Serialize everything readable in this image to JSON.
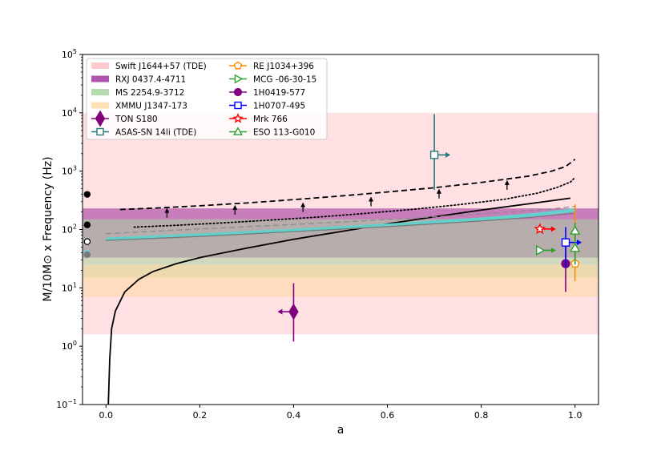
{
  "chart_data": {
    "type": "scatter",
    "xlabel": "a",
    "ylabel": "M/10M⊙ x Frequency (Hz)",
    "xlim": [
      -0.05,
      1.05
    ],
    "ylim_log10": [
      -1,
      5
    ],
    "x_ticks": [
      {
        "value": 0.0,
        "label": "0.0"
      },
      {
        "value": 0.2,
        "label": "0.2"
      },
      {
        "value": 0.4,
        "label": "0.4"
      },
      {
        "value": 0.6,
        "label": "0.6"
      },
      {
        "value": 0.8,
        "label": "0.8"
      },
      {
        "value": 1.0,
        "label": "1.0"
      }
    ],
    "y_ticks": [
      {
        "exp": -1,
        "base": "10",
        "sup": "−1"
      },
      {
        "exp": 0,
        "base": "10",
        "sup": "0"
      },
      {
        "exp": 1,
        "base": "10",
        "sup": "1"
      },
      {
        "exp": 2,
        "base": "10",
        "sup": "2"
      },
      {
        "exp": 3,
        "base": "10",
        "sup": "3"
      },
      {
        "exp": 4,
        "base": "10",
        "sup": "4"
      },
      {
        "exp": 5,
        "base": "10",
        "sup": "5"
      }
    ],
    "bands": [
      {
        "name": "Swift J1644+57 (TDE)",
        "low": 1.6,
        "high": 10000,
        "color": "#ffc9cc",
        "opacity": 0.55
      },
      {
        "name": "RXJ 0437.4-4711",
        "low": 33,
        "high": 230,
        "color": "#9b2d9b",
        "opacity": 0.55
      },
      {
        "name": "MS 2254.9-3712",
        "low": 15,
        "high": 150,
        "color": "#a9d3a0",
        "opacity": 0.55
      },
      {
        "name": "XMMU J1347-173",
        "low": 7,
        "high": 25,
        "color": "#ffd9a6",
        "opacity": 0.6
      }
    ],
    "curves": [
      {
        "name": "black-solid",
        "style": "solid",
        "color": "#000000",
        "width": 1.8,
        "points": [
          [
            0.005,
            0.1
          ],
          [
            0.008,
            0.6
          ],
          [
            0.012,
            2.0
          ],
          [
            0.02,
            4.0
          ],
          [
            0.04,
            8.5
          ],
          [
            0.07,
            14
          ],
          [
            0.1,
            19
          ],
          [
            0.15,
            26
          ],
          [
            0.2,
            33
          ],
          [
            0.3,
            48
          ],
          [
            0.4,
            68
          ],
          [
            0.5,
            92
          ],
          [
            0.6,
            125
          ],
          [
            0.7,
            165
          ],
          [
            0.8,
            215
          ],
          [
            0.9,
            275
          ],
          [
            0.96,
            320
          ],
          [
            0.99,
            345
          ]
        ]
      },
      {
        "name": "black-dashed",
        "style": "dashed",
        "color": "#000000",
        "width": 1.8,
        "points": [
          [
            0.03,
            220
          ],
          [
            0.1,
            232
          ],
          [
            0.2,
            255
          ],
          [
            0.3,
            285
          ],
          [
            0.4,
            325
          ],
          [
            0.5,
            375
          ],
          [
            0.6,
            440
          ],
          [
            0.7,
            520
          ],
          [
            0.8,
            640
          ],
          [
            0.9,
            820
          ],
          [
            0.95,
            1000
          ],
          [
            0.98,
            1200
          ],
          [
            1.0,
            1600
          ]
        ]
      },
      {
        "name": "black-dotted",
        "style": "dotted",
        "color": "#000000",
        "width": 1.8,
        "points": [
          [
            0.06,
            110
          ],
          [
            0.15,
            118
          ],
          [
            0.25,
            130
          ],
          [
            0.35,
            145
          ],
          [
            0.45,
            163
          ],
          [
            0.55,
            188
          ],
          [
            0.65,
            220
          ],
          [
            0.75,
            265
          ],
          [
            0.85,
            330
          ],
          [
            0.92,
            420
          ],
          [
            0.96,
            520
          ],
          [
            0.99,
            650
          ],
          [
            1.0,
            780
          ]
        ]
      },
      {
        "name": "grey-dashed",
        "style": "dashed",
        "color": "#8a8a8a",
        "width": 1.2,
        "points": [
          [
            0.0,
            85
          ],
          [
            0.2,
            102
          ],
          [
            0.4,
            122
          ],
          [
            0.6,
            148
          ],
          [
            0.8,
            185
          ],
          [
            0.95,
            225
          ],
          [
            1.0,
            250
          ]
        ]
      },
      {
        "name": "cyan-thick",
        "style": "solid",
        "color": "#62d1cc",
        "width": 4.5,
        "points": [
          [
            0.0,
            68
          ],
          [
            0.2,
            80
          ],
          [
            0.4,
            96
          ],
          [
            0.6,
            118
          ],
          [
            0.8,
            150
          ],
          [
            0.9,
            175
          ],
          [
            1.0,
            215
          ]
        ]
      },
      {
        "name": "grey-solid",
        "style": "solid",
        "color": "#7a7a7a",
        "width": 1.3,
        "points": [
          [
            0.0,
            65
          ],
          [
            0.2,
            76
          ],
          [
            0.4,
            92
          ],
          [
            0.6,
            112
          ],
          [
            0.8,
            140
          ],
          [
            0.9,
            160
          ],
          [
            1.0,
            190
          ]
        ]
      }
    ],
    "arrows_up": [
      {
        "x": 0.13,
        "y": 160
      },
      {
        "x": 0.275,
        "y": 180
      },
      {
        "x": 0.42,
        "y": 200
      },
      {
        "x": 0.565,
        "y": 250
      },
      {
        "x": 0.71,
        "y": 340
      },
      {
        "x": 0.855,
        "y": 480
      }
    ],
    "left_markers": [
      {
        "x": -0.04,
        "y": 400,
        "fill": "#000000",
        "stroke": "#000000"
      },
      {
        "x": -0.04,
        "y": 120,
        "fill": "#000000",
        "stroke": "#000000"
      },
      {
        "x": -0.04,
        "y": 62,
        "fill": "#ffffff",
        "stroke": "#000000"
      },
      {
        "x": -0.04,
        "y": 39,
        "fill": "#62d1cc",
        "stroke": "#62d1cc"
      },
      {
        "x": -0.04,
        "y": 37,
        "fill": "#7a7a7a",
        "stroke": "#7a7a7a"
      }
    ],
    "sources": [
      {
        "name": "TON S180",
        "marker": "diamond",
        "color": "#800080",
        "fill": "#800080",
        "x": 0.4,
        "y": 3.9,
        "y_err": [
          1.2,
          12
        ],
        "arrow": "left"
      },
      {
        "name": "ASAS-SN 14li (TDE)",
        "marker": "square",
        "color": "#1f7a7a",
        "fill": "#ffffff",
        "x": 0.7,
        "y": 1900,
        "y_err": [
          480,
          9500
        ],
        "arrow": "right"
      },
      {
        "name": "RE J1034+396",
        "marker": "pentagon",
        "color": "#ff8c00",
        "fill": "#ffffff",
        "x": 1.0,
        "y": 26,
        "y_err": [
          13,
          270
        ],
        "arrow": "none"
      },
      {
        "name": "MCG -06-30-15",
        "marker": "triangle-right",
        "color": "#2ca02c",
        "fill": "#ffffff",
        "x": 0.925,
        "y": 44,
        "y_err": null,
        "arrow": "right"
      },
      {
        "name": "1H0419-577",
        "marker": "circle",
        "color": "#800080",
        "fill": "#800080",
        "x": 0.98,
        "y": 26,
        "y_err": [
          8.5,
          60
        ],
        "arrow": "none"
      },
      {
        "name": "1H0707-495",
        "marker": "square",
        "color": "#0000ff",
        "fill": "#ffffff",
        "x": 0.98,
        "y": 60,
        "y_err": [
          22,
          110
        ],
        "arrow": "right"
      },
      {
        "name": "Mrk 766",
        "marker": "star",
        "color": "#ff0000",
        "fill": "#ffffff",
        "x": 0.925,
        "y": 102,
        "y_err": null,
        "arrow": "right"
      },
      {
        "name": "ESO 113-G010",
        "marker": "triangle-up",
        "color": "#2ca02c",
        "fill": "#ffffff",
        "x": 1.0,
        "y": 48,
        "y_err": [
          25,
          130
        ],
        "arrow": "none"
      }
    ],
    "extra_points": [
      {
        "marker": "triangle-up",
        "color": "#2ca02c",
        "fill": "#ffffff",
        "x": 1.0,
        "y": 95
      }
    ],
    "legend": {
      "placement": "upper-left",
      "col1": [
        {
          "label": "Swift J1644+57 (TDE)",
          "kind": "band",
          "color": "#ffc9cc"
        },
        {
          "label": "RXJ 0437.4-4711",
          "kind": "band",
          "color": "#b055b0"
        },
        {
          "label": "MS 2254.9-3712",
          "kind": "band",
          "color": "#b5dab0"
        },
        {
          "label": "XMMU J1347-173",
          "kind": "band",
          "color": "#ffe0b5"
        },
        {
          "label": "TON S180",
          "kind": "marker",
          "marker": "diamond",
          "color": "#800080",
          "fill": "#800080"
        },
        {
          "label": "ASAS-SN 14li (TDE)",
          "kind": "marker",
          "marker": "square",
          "color": "#1f7a7a",
          "fill": "#ffffff"
        }
      ],
      "col2": [
        {
          "label": "RE J1034+396",
          "kind": "marker",
          "marker": "pentagon",
          "color": "#ff8c00",
          "fill": "#ffffff"
        },
        {
          "label": "MCG -06-30-15",
          "kind": "marker",
          "marker": "triangle-right",
          "color": "#2ca02c",
          "fill": "#ffffff"
        },
        {
          "label": "1H0419-577",
          "kind": "marker",
          "marker": "circle",
          "color": "#800080",
          "fill": "#800080"
        },
        {
          "label": "1H0707-495",
          "kind": "marker",
          "marker": "square",
          "color": "#0000ff",
          "fill": "#ffffff"
        },
        {
          "label": "Mrk 766",
          "kind": "marker",
          "marker": "star",
          "color": "#ff0000",
          "fill": "#ffffff"
        },
        {
          "label": "ESO 113-G010",
          "kind": "marker",
          "marker": "triangle-up",
          "color": "#2ca02c",
          "fill": "#ffffff"
        }
      ]
    }
  }
}
